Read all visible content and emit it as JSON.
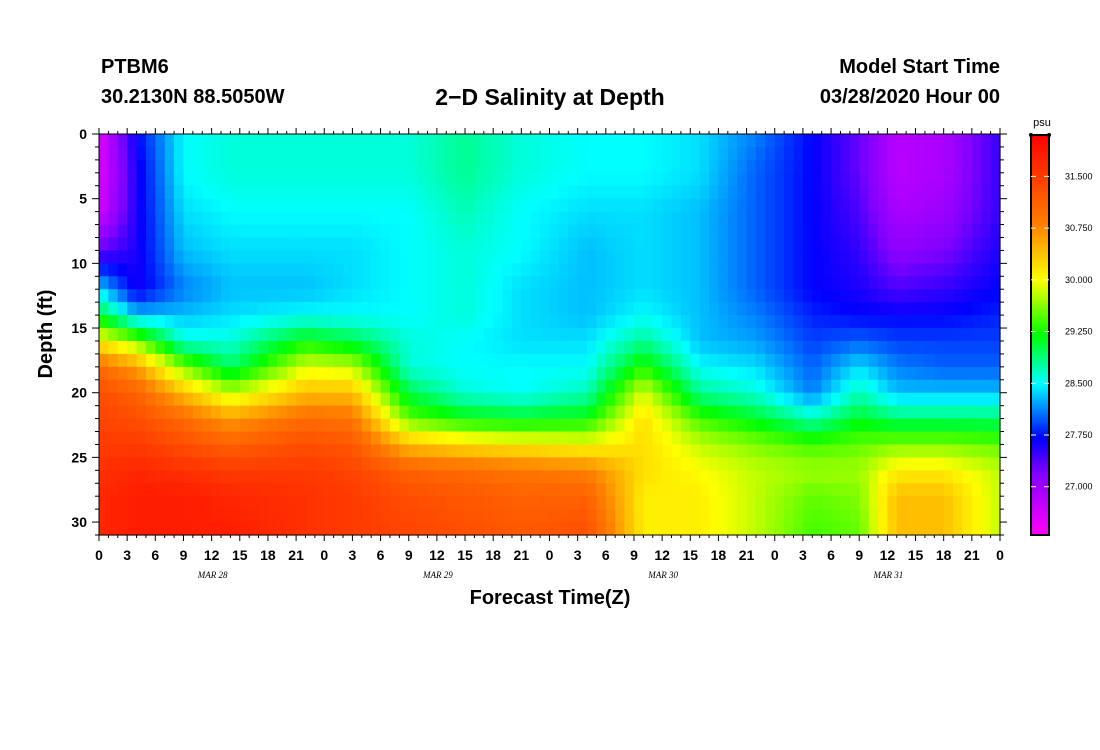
{
  "header": {
    "station_name": "PTBM6",
    "station_coords": "30.2130N 88.5050W",
    "model_start_label": "Model Start Time",
    "model_start_value": "03/28/2020 Hour 00"
  },
  "chart_data": {
    "type": "heatmap",
    "title": "2−D Salinity at Depth",
    "xlabel": "Forecast Time(Z)",
    "ylabel": "Depth (ft)",
    "x_hours_range": [
      0,
      96
    ],
    "ylim": [
      0,
      31
    ],
    "x_ticks_hours": [
      0,
      3,
      6,
      9,
      12,
      15,
      18,
      21,
      24,
      27,
      30,
      33,
      36,
      39,
      42,
      45,
      48,
      51,
      54,
      57,
      60,
      63,
      66,
      69,
      72,
      75,
      78,
      81,
      84,
      87,
      90,
      93,
      96
    ],
    "x_tick_labels": [
      "0",
      "3",
      "6",
      "9",
      "12",
      "15",
      "18",
      "21",
      "0",
      "3",
      "6",
      "9",
      "12",
      "15",
      "18",
      "21",
      "0",
      "3",
      "6",
      "9",
      "12",
      "15",
      "18",
      "21",
      "0",
      "3",
      "6",
      "9",
      "12",
      "15",
      "18",
      "21",
      "0"
    ],
    "y_ticks": [
      0,
      5,
      10,
      15,
      20,
      25,
      30
    ],
    "y_tick_labels": [
      "0",
      "5",
      "10",
      "15",
      "20",
      "25",
      "30"
    ],
    "date_labels": [
      {
        "label": "MAR 28",
        "hour": 12
      },
      {
        "label": "MAR 29",
        "hour": 36
      },
      {
        "label": "MAR 30",
        "hour": 60
      },
      {
        "label": "MAR 31",
        "hour": 84
      }
    ],
    "colorbar": {
      "unit": "psu",
      "range": [
        26.3,
        32.1
      ],
      "labels": [
        "31.500",
        "30.750",
        "30.000",
        "29.250",
        "28.500",
        "27.750",
        "27.000"
      ],
      "label_values": [
        31.5,
        30.75,
        30.0,
        29.25,
        28.5,
        27.75,
        27.0
      ]
    },
    "colormap": [
      {
        "v": 26.3,
        "color": "#ff00ff"
      },
      {
        "v": 27.2,
        "color": "#8000ff"
      },
      {
        "v": 27.7,
        "color": "#0000ff"
      },
      {
        "v": 28.5,
        "color": "#00ffff"
      },
      {
        "v": 29.2,
        "color": "#00ff00"
      },
      {
        "v": 30.0,
        "color": "#ffff00"
      },
      {
        "v": 30.8,
        "color": "#ff7f00"
      },
      {
        "v": 32.1,
        "color": "#ff0000"
      }
    ],
    "profile_times_hours": [
      0,
      4,
      9,
      14,
      22,
      27,
      33,
      39,
      45,
      52,
      58,
      64,
      70,
      76,
      81,
      85,
      90,
      96
    ],
    "profile_depths_ft": [
      0,
      3,
      6,
      9,
      12,
      14,
      16,
      18,
      20,
      22,
      24,
      26,
      28,
      31
    ],
    "salinity_profiles": [
      [
        26.5,
        26.5,
        26.6,
        27.3,
        28.4,
        29.1,
        30.1,
        31.0,
        31.3,
        31.4,
        31.5,
        31.6,
        31.7,
        31.7
      ],
      [
        27.7,
        27.6,
        27.6,
        27.6,
        27.6,
        28.3,
        29.6,
        30.6,
        31.1,
        31.3,
        31.5,
        31.7,
        31.8,
        31.8
      ],
      [
        28.5,
        28.5,
        28.4,
        28.3,
        28.1,
        28.3,
        28.6,
        29.6,
        30.4,
        31.0,
        31.3,
        31.6,
        31.8,
        31.8
      ],
      [
        28.6,
        28.6,
        28.5,
        28.4,
        28.3,
        28.4,
        28.6,
        28.9,
        29.8,
        30.6,
        31.1,
        31.5,
        31.7,
        31.8
      ],
      [
        28.6,
        28.6,
        28.5,
        28.4,
        28.3,
        28.5,
        29.2,
        29.9,
        30.4,
        31.0,
        31.3,
        31.5,
        31.6,
        31.6
      ],
      [
        28.6,
        28.6,
        28.5,
        28.4,
        28.4,
        28.5,
        29.0,
        29.8,
        30.4,
        30.9,
        31.2,
        31.4,
        31.5,
        31.5
      ],
      [
        28.6,
        28.6,
        28.5,
        28.5,
        28.5,
        28.5,
        28.6,
        28.6,
        29.0,
        29.5,
        30.4,
        31.1,
        31.3,
        31.4
      ],
      [
        28.8,
        28.8,
        28.7,
        28.6,
        28.6,
        28.6,
        28.5,
        28.5,
        28.6,
        29.2,
        30.2,
        31.0,
        31.2,
        31.3
      ],
      [
        28.6,
        28.6,
        28.5,
        28.5,
        28.4,
        28.4,
        28.4,
        28.5,
        28.5,
        29.1,
        30.1,
        30.9,
        31.1,
        31.2
      ],
      [
        28.5,
        28.5,
        28.4,
        28.3,
        28.3,
        28.3,
        28.4,
        28.5,
        28.7,
        29.2,
        30.0,
        30.8,
        31.1,
        31.3
      ],
      [
        28.5,
        28.5,
        28.4,
        28.4,
        28.4,
        28.5,
        28.8,
        29.3,
        29.9,
        30.2,
        30.2,
        30.2,
        30.1,
        30.1
      ],
      [
        28.4,
        28.4,
        28.3,
        28.3,
        28.3,
        28.3,
        28.3,
        28.5,
        28.8,
        29.4,
        29.8,
        30.0,
        30.1,
        30.1
      ],
      [
        28.1,
        28.0,
        28.0,
        28.0,
        28.0,
        28.1,
        28.2,
        28.4,
        28.6,
        29.1,
        29.6,
        29.8,
        29.8,
        29.8
      ],
      [
        27.7,
        27.7,
        27.7,
        27.7,
        27.7,
        27.8,
        27.9,
        28.0,
        28.1,
        28.7,
        29.4,
        29.7,
        29.5,
        29.4
      ],
      [
        27.3,
        27.3,
        27.4,
        27.5,
        27.6,
        27.7,
        28.0,
        28.4,
        28.7,
        29.1,
        29.5,
        29.7,
        29.6,
        29.5
      ],
      [
        26.8,
        26.8,
        26.9,
        27.1,
        27.4,
        27.7,
        27.9,
        28.1,
        28.3,
        28.9,
        29.6,
        30.1,
        30.4,
        30.4
      ],
      [
        26.9,
        26.9,
        27.0,
        27.2,
        27.5,
        27.7,
        27.9,
        28.0,
        28.3,
        28.9,
        29.6,
        30.1,
        30.4,
        30.4
      ],
      [
        27.5,
        27.5,
        27.5,
        27.6,
        27.7,
        27.8,
        27.9,
        28.0,
        28.3,
        28.9,
        29.5,
        29.8,
        29.8,
        29.8
      ]
    ]
  }
}
